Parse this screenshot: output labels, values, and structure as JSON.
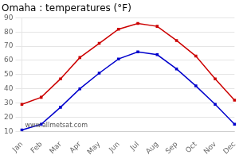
{
  "chart_data": {
    "type": "line",
    "title": "Omaha : temperatures (°F)",
    "categories": [
      "Jan",
      "Feb",
      "Mar",
      "Apr",
      "May",
      "Jun",
      "Jul",
      "Aug",
      "Sep",
      "Oct",
      "Nov",
      "Dec"
    ],
    "series": [
      {
        "color": "#cc0000",
        "marker": "square",
        "values": [
          29,
          34,
          47,
          62,
          72,
          82,
          86,
          84,
          74,
          63,
          47,
          32
        ]
      },
      {
        "color": "#0000cc",
        "marker": "square",
        "values": [
          11,
          15,
          27,
          40,
          51,
          61,
          66,
          64,
          54,
          42,
          29,
          15
        ]
      }
    ],
    "ylim": [
      10,
      90
    ],
    "yticks": [
      10,
      20,
      30,
      40,
      50,
      60,
      70,
      80,
      90
    ],
    "grid": "y",
    "annotations": [
      "www.allmetsat.com"
    ]
  }
}
